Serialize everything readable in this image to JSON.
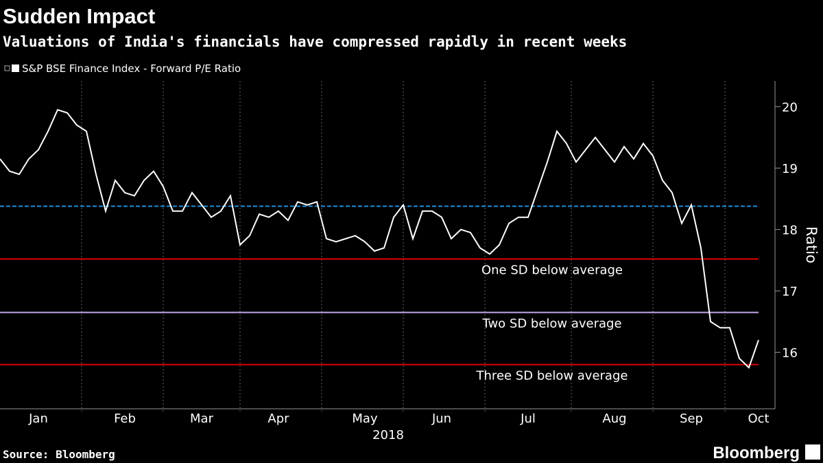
{
  "chart_data": {
    "type": "line",
    "title": "Sudden Impact",
    "subtitle": "Valuations of India's financials have compressed rapidly in recent weeks",
    "y_label": "Ratio",
    "x_label": "2018",
    "source": "Source: Bloomberg",
    "brand": "Bloomberg",
    "categories": [
      null,
      null,
      null,
      null,
      "Jan",
      null,
      null,
      null,
      null,
      null,
      null,
      null,
      null,
      "Feb",
      null,
      null,
      null,
      null,
      null,
      null,
      null,
      "Mar",
      null,
      null,
      null,
      null,
      null,
      null,
      null,
      "Apr",
      null,
      null,
      null,
      null,
      null,
      null,
      null,
      null,
      "May",
      null,
      null,
      null,
      null,
      null,
      null,
      null,
      "Jun",
      null,
      null,
      null,
      null,
      null,
      null,
      null,
      null,
      "Jul",
      null,
      null,
      null,
      null,
      null,
      null,
      null,
      null,
      "Aug",
      null,
      null,
      null,
      null,
      null,
      null,
      null,
      "Sep",
      null,
      null,
      null,
      null,
      null,
      null,
      "Oct"
    ],
    "series": [
      {
        "name": "S&P BSE Finance Index - Forward P/E Ratio",
        "color": "#ffffff",
        "values": [
          19.15,
          18.95,
          18.9,
          19.15,
          19.3,
          19.6,
          19.95,
          19.9,
          19.7,
          19.6,
          18.9,
          18.3,
          18.8,
          18.6,
          18.55,
          18.8,
          18.95,
          18.7,
          18.3,
          18.3,
          18.6,
          18.4,
          18.2,
          18.3,
          18.55,
          17.75,
          17.9,
          18.25,
          18.2,
          18.3,
          18.15,
          18.45,
          18.4,
          18.45,
          17.85,
          17.8,
          17.85,
          17.9,
          17.8,
          17.65,
          17.7,
          18.2,
          18.4,
          17.85,
          18.3,
          18.3,
          18.2,
          17.85,
          18.0,
          17.95,
          17.7,
          17.6,
          17.75,
          18.1,
          18.2,
          18.2,
          18.65,
          19.1,
          19.6,
          19.4,
          19.1,
          19.3,
          19.5,
          19.3,
          19.1,
          19.35,
          19.15,
          19.4,
          19.2,
          18.8,
          18.6,
          18.1,
          18.4,
          17.7,
          16.5,
          16.4,
          16.4,
          15.9,
          15.75,
          16.2
        ]
      }
    ],
    "reference_lines": [
      {
        "value": 18.38,
        "color": "#1e8fd8",
        "style": "dashed"
      },
      {
        "value": 17.52,
        "color": "#e00000",
        "label": "One SD below average"
      },
      {
        "value": 16.65,
        "color": "#c9a8f0",
        "label": "Two SD below average"
      },
      {
        "value": 15.8,
        "color": "#e00000",
        "label": "Three SD below average"
      }
    ],
    "ylim": [
      15.08,
      20.42
    ],
    "yticks": [
      16,
      17,
      18,
      19,
      20
    ],
    "y_axis_side": "right",
    "grid": true
  }
}
